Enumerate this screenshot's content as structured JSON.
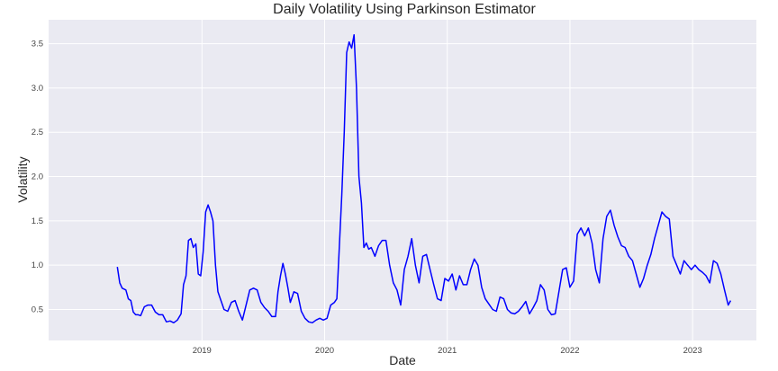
{
  "chart_data": {
    "type": "line",
    "title": "Daily Volatility Using Parkinson Estimator",
    "xlabel": "Date",
    "ylabel": "Volatility",
    "xlim": [
      2017.75,
      2023.52
    ],
    "ylim": [
      0.15,
      3.77
    ],
    "x_ticks": [
      {
        "value": 2019,
        "label": "2019"
      },
      {
        "value": 2020,
        "label": "2020"
      },
      {
        "value": 2021,
        "label": "2021"
      },
      {
        "value": 2022,
        "label": "2022"
      },
      {
        "value": 2023,
        "label": "2023"
      }
    ],
    "y_ticks": [
      {
        "value": 0.5,
        "label": "0.5"
      },
      {
        "value": 1.0,
        "label": "1.0"
      },
      {
        "value": 1.5,
        "label": "1.5"
      },
      {
        "value": 2.0,
        "label": "2.0"
      },
      {
        "value": 2.5,
        "label": "2.5"
      },
      {
        "value": 3.0,
        "label": "3.0"
      },
      {
        "value": 3.5,
        "label": "3.5"
      }
    ],
    "grid": true,
    "legend": null,
    "series": [
      {
        "name": "Volatility",
        "color": "#0000ff",
        "x": [
          2018.31,
          2018.33,
          2018.35,
          2018.38,
          2018.4,
          2018.42,
          2018.44,
          2018.46,
          2018.48,
          2018.5,
          2018.53,
          2018.56,
          2018.59,
          2018.62,
          2018.65,
          2018.68,
          2018.71,
          2018.74,
          2018.77,
          2018.8,
          2018.83,
          2018.85,
          2018.87,
          2018.89,
          2018.91,
          2018.93,
          2018.95,
          2018.97,
          2018.99,
          2019.01,
          2019.03,
          2019.05,
          2019.07,
          2019.09,
          2019.11,
          2019.13,
          2019.15,
          2019.18,
          2019.21,
          2019.24,
          2019.27,
          2019.3,
          2019.33,
          2019.36,
          2019.39,
          2019.42,
          2019.45,
          2019.48,
          2019.51,
          2019.54,
          2019.57,
          2019.6,
          2019.62,
          2019.64,
          2019.66,
          2019.68,
          2019.7,
          2019.72,
          2019.75,
          2019.78,
          2019.81,
          2019.84,
          2019.87,
          2019.9,
          2019.93,
          2019.96,
          2019.99,
          2020.02,
          2020.05,
          2020.08,
          2020.1,
          2020.12,
          2020.14,
          2020.16,
          2020.18,
          2020.2,
          2020.22,
          2020.24,
          2020.26,
          2020.28,
          2020.3,
          2020.32,
          2020.34,
          2020.36,
          2020.38,
          2020.41,
          2020.44,
          2020.47,
          2020.5,
          2020.53,
          2020.56,
          2020.59,
          2020.62,
          2020.65,
          2020.68,
          2020.71,
          2020.74,
          2020.77,
          2020.8,
          2020.83,
          2020.86,
          2020.89,
          2020.92,
          2020.95,
          2020.98,
          2021.01,
          2021.04,
          2021.07,
          2021.1,
          2021.13,
          2021.16,
          2021.19,
          2021.22,
          2021.25,
          2021.28,
          2021.31,
          2021.34,
          2021.37,
          2021.4,
          2021.43,
          2021.46,
          2021.49,
          2021.52,
          2021.55,
          2021.58,
          2021.61,
          2021.64,
          2021.67,
          2021.7,
          2021.73,
          2021.76,
          2021.79,
          2021.82,
          2021.85,
          2021.88,
          2021.91,
          2021.94,
          2021.97,
          2022.0,
          2022.03,
          2022.06,
          2022.09,
          2022.12,
          2022.15,
          2022.18,
          2022.21,
          2022.24,
          2022.27,
          2022.3,
          2022.33,
          2022.36,
          2022.39,
          2022.42,
          2022.45,
          2022.48,
          2022.51,
          2022.54,
          2022.57,
          2022.6,
          2022.63,
          2022.66,
          2022.69,
          2022.72,
          2022.75,
          2022.78,
          2022.81,
          2022.84,
          2022.87,
          2022.9,
          2022.93,
          2022.96,
          2022.99,
          2023.02,
          2023.05,
          2023.08,
          2023.11,
          2023.14,
          2023.17,
          2023.2,
          2023.23,
          2023.26,
          2023.29,
          2023.31
        ],
        "values": [
          0.98,
          0.8,
          0.74,
          0.72,
          0.62,
          0.6,
          0.47,
          0.44,
          0.44,
          0.43,
          0.53,
          0.55,
          0.55,
          0.47,
          0.44,
          0.44,
          0.36,
          0.37,
          0.35,
          0.38,
          0.45,
          0.78,
          0.88,
          1.28,
          1.3,
          1.2,
          1.24,
          0.9,
          0.88,
          1.15,
          1.6,
          1.68,
          1.6,
          1.5,
          1.0,
          0.7,
          0.62,
          0.5,
          0.48,
          0.58,
          0.6,
          0.48,
          0.38,
          0.55,
          0.72,
          0.74,
          0.72,
          0.58,
          0.52,
          0.48,
          0.42,
          0.42,
          0.7,
          0.88,
          1.02,
          0.9,
          0.75,
          0.58,
          0.7,
          0.68,
          0.48,
          0.4,
          0.36,
          0.35,
          0.38,
          0.4,
          0.38,
          0.4,
          0.55,
          0.58,
          0.62,
          1.2,
          1.8,
          2.5,
          3.4,
          3.52,
          3.45,
          3.6,
          3.0,
          2.0,
          1.7,
          1.2,
          1.25,
          1.18,
          1.2,
          1.1,
          1.22,
          1.28,
          1.28,
          1.0,
          0.8,
          0.72,
          0.55,
          0.95,
          1.1,
          1.3,
          1.0,
          0.8,
          1.1,
          1.12,
          0.95,
          0.78,
          0.62,
          0.6,
          0.85,
          0.82,
          0.9,
          0.72,
          0.88,
          0.78,
          0.78,
          0.95,
          1.07,
          1.0,
          0.75,
          0.62,
          0.56,
          0.5,
          0.48,
          0.64,
          0.62,
          0.5,
          0.46,
          0.45,
          0.48,
          0.53,
          0.59,
          0.45,
          0.52,
          0.6,
          0.78,
          0.72,
          0.5,
          0.44,
          0.45,
          0.7,
          0.95,
          0.97,
          0.75,
          0.82,
          1.35,
          1.42,
          1.33,
          1.42,
          1.25,
          0.95,
          0.8,
          1.3,
          1.55,
          1.62,
          1.45,
          1.32,
          1.22,
          1.2,
          1.1,
          1.05,
          0.9,
          0.75,
          0.85,
          1.0,
          1.12,
          1.3,
          1.45,
          1.6,
          1.55,
          1.52,
          1.1,
          1.0,
          0.9,
          1.05,
          1.0,
          0.95,
          1.0,
          0.95,
          0.92,
          0.88,
          0.8,
          1.05,
          1.02,
          0.9,
          0.72,
          0.55,
          0.6
        ]
      }
    ]
  }
}
